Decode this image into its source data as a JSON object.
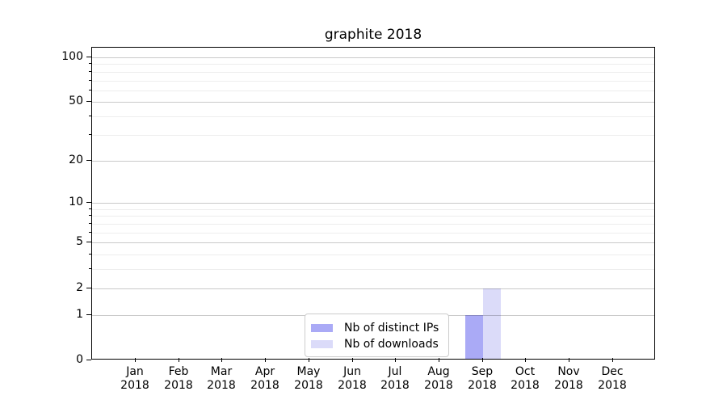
{
  "chart": {
    "title": "graphite 2018"
  },
  "legend": {
    "items": [
      {
        "label": "Nb of distinct IPs",
        "color": "#aaaaf6"
      },
      {
        "label": "Nb of downloads",
        "color": "#dbdbf9"
      }
    ]
  },
  "chart_data": {
    "type": "bar",
    "title": "graphite 2018",
    "categories": [
      "Jan 2018",
      "Feb 2018",
      "Mar 2018",
      "Apr 2018",
      "May 2018",
      "Jun 2018",
      "Jul 2018",
      "Aug 2018",
      "Sep 2018",
      "Oct 2018",
      "Nov 2018",
      "Dec 2018"
    ],
    "series": [
      {
        "name": "Nb of distinct IPs",
        "color": "#aaaaf6",
        "values": [
          0,
          0,
          0,
          0,
          0,
          0,
          0,
          0,
          1,
          0,
          0,
          0
        ]
      },
      {
        "name": "Nb of downloads",
        "color": "#dbdbf9",
        "values": [
          0,
          0,
          0,
          0,
          0,
          0,
          0,
          0,
          2,
          0,
          0,
          0
        ]
      }
    ],
    "y_axis": {
      "scale": "log1p",
      "major_ticks": [
        0,
        1,
        2,
        5,
        10,
        20,
        50,
        100
      ],
      "minor_ticks": [
        3,
        4,
        6,
        7,
        8,
        9,
        30,
        40,
        60,
        70,
        80,
        90
      ],
      "ylim": [
        0,
        116
      ]
    },
    "grid": "horizontal-only",
    "grid_color": "#c9c9c9",
    "minor_grid_color": "#ededed",
    "legend_position": "lower-center",
    "xlabel": "",
    "ylabel": ""
  }
}
